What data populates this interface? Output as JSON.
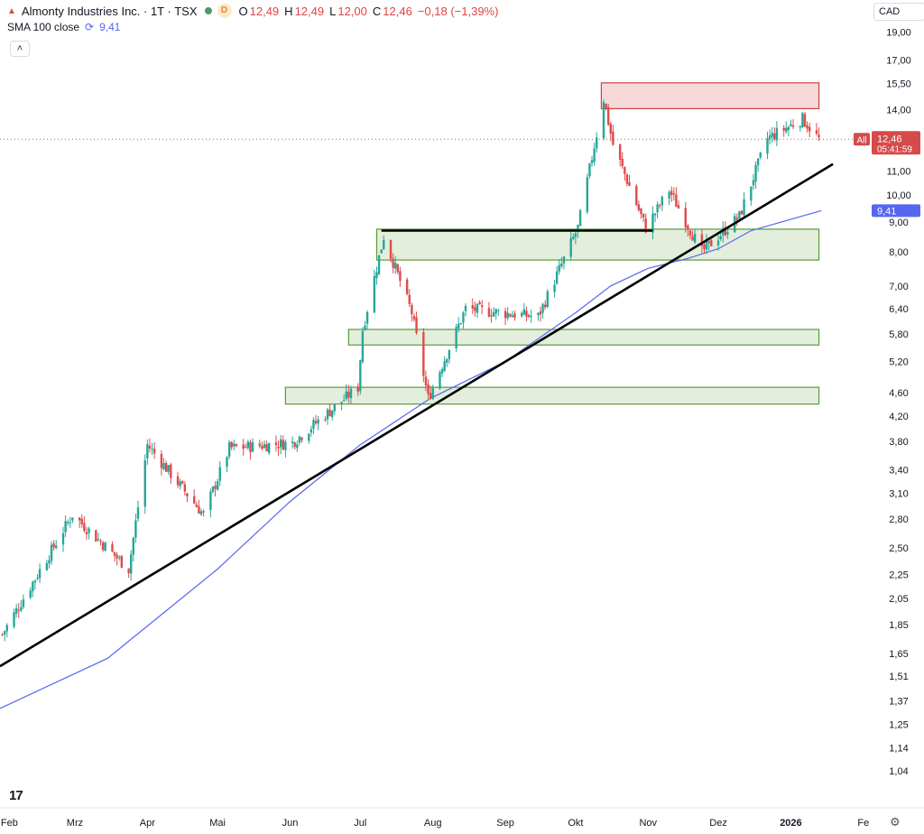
{
  "header": {
    "logo_glyph": "▲",
    "title": "Almonty Industries Inc. · 1T · TSX",
    "d_badge": "D",
    "o_label": "O",
    "o_value": "12,49",
    "h_label": "H",
    "h_value": "12,49",
    "l_label": "L",
    "l_value": "12,00",
    "c_label": "C",
    "c_value": "12,46",
    "change": "−0,18 (−1,39%)"
  },
  "indicator": {
    "label": "SMA 100 close",
    "value": "9,41",
    "icon": "refresh-icon"
  },
  "collapse_glyph": "˄",
  "currency": "CAD",
  "brand": "17",
  "settings_icon": "⚙",
  "colors": {
    "up": "#26a69a",
    "down": "#e04a4a",
    "sma": "#5567ef",
    "resistance_fill": "rgba(214,80,80,0.22)",
    "resistance_stroke": "#cc4444",
    "support_fill": "rgba(126,179,96,0.22)",
    "support_stroke": "#5a9a3c",
    "trendline": "#000000"
  },
  "chart_data": {
    "type": "candlestick",
    "y_scale": "log",
    "ylim": [
      0.98,
      19.5
    ],
    "y_ticks": [
      "19,00",
      "17,00",
      "15,50",
      "14,00",
      "12,50",
      "11,00",
      "10,00",
      "9,00",
      "8,00",
      "7,00",
      "6,40",
      "5,80",
      "5,20",
      "4,60",
      "4,20",
      "3,80",
      "3,40",
      "3,10",
      "2,80",
      "2,50",
      "2,25",
      "2,05",
      "1,85",
      "1,65",
      "1,51",
      "1,37",
      "1,25",
      "1,14",
      "1,04"
    ],
    "x_ticks": [
      "Feb",
      "Mrz",
      "Apr",
      "Mai",
      "Jun",
      "Jul",
      "Aug",
      "Sep",
      "Okt",
      "Nov",
      "Dez",
      "2026",
      "Fe"
    ],
    "last_price": "12,46",
    "countdown": "05:41:59",
    "price_tag_prefix": "All",
    "sma_tag": "9,41",
    "x_range": [
      "2025-01-28",
      "2026-02-03"
    ],
    "key_prices": [
      {
        "date": "2025-01-29",
        "price": 1.78
      },
      {
        "date": "2025-02-28",
        "price": 2.85
      },
      {
        "date": "2025-03-24",
        "price": 2.3
      },
      {
        "date": "2025-04-01",
        "price": 3.75
      },
      {
        "date": "2025-04-25",
        "price": 2.85
      },
      {
        "date": "2025-05-06",
        "price": 3.7
      },
      {
        "date": "2025-06-02",
        "price": 3.78
      },
      {
        "date": "2025-06-30",
        "price": 4.7
      },
      {
        "date": "2025-07-02",
        "price": 5.9
      },
      {
        "date": "2025-07-11",
        "price": 8.5
      },
      {
        "date": "2025-07-23",
        "price": 6.3
      },
      {
        "date": "2025-07-30",
        "price": 4.5
      },
      {
        "date": "2025-08-15",
        "price": 6.4
      },
      {
        "date": "2025-09-15",
        "price": 6.2
      },
      {
        "date": "2025-10-02",
        "price": 8.8
      },
      {
        "date": "2025-10-13",
        "price": 14.6
      },
      {
        "date": "2025-10-17",
        "price": 12.2
      },
      {
        "date": "2025-10-31",
        "price": 8.8
      },
      {
        "date": "2025-11-10",
        "price": 10.2
      },
      {
        "date": "2025-11-24",
        "price": 8.0
      },
      {
        "date": "2025-12-10",
        "price": 9.2
      },
      {
        "date": "2025-12-22",
        "price": 12.5
      },
      {
        "date": "2026-01-06",
        "price": 13.5
      },
      {
        "date": "2026-01-13",
        "price": 12.46
      }
    ],
    "sma_100": [
      {
        "date": "2025-01-28",
        "price": 1.33
      },
      {
        "date": "2025-03-15",
        "price": 1.62
      },
      {
        "date": "2025-05-01",
        "price": 2.3
      },
      {
        "date": "2025-06-01",
        "price": 3.0
      },
      {
        "date": "2025-07-01",
        "price": 3.75
      },
      {
        "date": "2025-07-31",
        "price": 4.5
      },
      {
        "date": "2025-09-01",
        "price": 5.2
      },
      {
        "date": "2025-10-01",
        "price": 6.3
      },
      {
        "date": "2025-10-16",
        "price": 7.0
      },
      {
        "date": "2025-11-01",
        "price": 7.5
      },
      {
        "date": "2025-11-18",
        "price": 7.8
      },
      {
        "date": "2025-12-01",
        "price": 8.1
      },
      {
        "date": "2025-12-15",
        "price": 8.7
      },
      {
        "date": "2026-01-14",
        "price": 9.41
      }
    ],
    "zones": [
      {
        "kind": "resistance",
        "from": "2025-10-12",
        "to": "2026-01-13",
        "low": 14.05,
        "high": 15.55
      },
      {
        "kind": "support",
        "from": "2025-07-08",
        "to": "2026-01-13",
        "low": 7.75,
        "high": 8.75
      },
      {
        "kind": "support",
        "from": "2025-06-26",
        "to": "2026-01-13",
        "low": 5.55,
        "high": 5.9
      },
      {
        "kind": "support",
        "from": "2025-05-30",
        "to": "2026-01-13",
        "low": 4.4,
        "high": 4.7
      }
    ],
    "lines": [
      {
        "kind": "trendline",
        "from": {
          "date": "2025-01-28",
          "price": 1.57
        },
        "to": {
          "date": "2026-01-19",
          "price": 11.3
        }
      },
      {
        "kind": "horizontal",
        "from": {
          "date": "2025-07-10",
          "price": 8.7
        },
        "to": {
          "date": "2025-11-03",
          "price": 8.7
        }
      }
    ]
  }
}
